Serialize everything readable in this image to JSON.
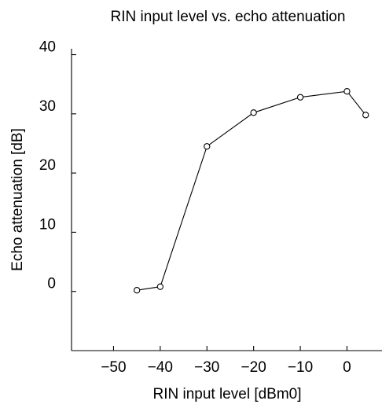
{
  "chart_data": {
    "type": "line",
    "title": "RIN input level vs. echo attenuation",
    "xlabel": "RIN input level [dBm0]",
    "ylabel": "Echo attenuation [dB]",
    "xlim": [
      -59,
      7.5
    ],
    "ylim": [
      -10,
      41
    ],
    "x_ticks": [
      -50,
      -40,
      -30,
      -20,
      -10,
      0
    ],
    "x_tick_labels": [
      "−50",
      "−40",
      "−30",
      "−20",
      "−10",
      "0"
    ],
    "y_ticks": [
      0,
      10,
      20,
      30,
      40
    ],
    "y_tick_labels": [
      "0",
      "10",
      "20",
      "30",
      "40"
    ],
    "grid": false,
    "series": [
      {
        "x": [
          -45,
          -40,
          -30,
          -20,
          -10,
          0,
          4
        ],
        "y": [
          0.2,
          0.8,
          24.5,
          30.2,
          32.8,
          33.8,
          29.8
        ],
        "marker": "open-circle",
        "color": "#000000"
      }
    ]
  }
}
